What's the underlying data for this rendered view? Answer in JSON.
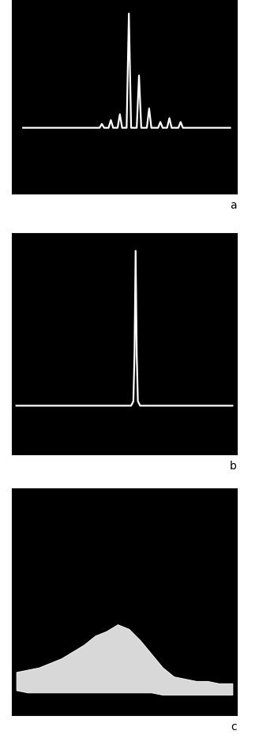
{
  "chart_data": [
    {
      "type": "line",
      "xlabel": "a",
      "color": "#ffffff",
      "tick_labels": false,
      "xlim": [
        0,
        100
      ],
      "ylim": [
        0,
        100
      ],
      "x": [
        5,
        39,
        40,
        41,
        43,
        44,
        45,
        47,
        48,
        49,
        51,
        52,
        53,
        55.5,
        56.5,
        57.5,
        60,
        61,
        62,
        65,
        66,
        67,
        69,
        70,
        71,
        74,
        75,
        76,
        97
      ],
      "values": [
        34,
        34,
        36,
        34,
        34,
        38,
        34,
        34,
        41,
        34,
        34,
        93,
        34,
        34,
        61,
        34,
        34,
        44,
        34,
        34,
        37,
        34,
        34,
        39,
        34,
        34,
        37,
        34,
        34
      ]
    },
    {
      "type": "line",
      "xlabel": "b",
      "color": "#ffffff",
      "tick_labels": false,
      "xlim": [
        0,
        100
      ],
      "ylim": [
        0,
        100
      ],
      "x": [
        2,
        53,
        54,
        54.5,
        55,
        55.5,
        56,
        57,
        98
      ],
      "values": [
        22,
        22,
        24,
        45,
        92,
        45,
        24,
        22,
        22
      ]
    },
    {
      "type": "area",
      "xlabel": "c",
      "color": "#ffffff",
      "tick_labels": false,
      "xlim": [
        0,
        100
      ],
      "ylim": [
        0,
        100
      ],
      "x": [
        2,
        7,
        12,
        17,
        22,
        27,
        32,
        37,
        42,
        47,
        52,
        57,
        62,
        67,
        72,
        77,
        82,
        87,
        92,
        98
      ],
      "values": [
        19,
        20,
        21,
        23,
        25,
        28,
        31,
        35,
        37,
        40,
        38,
        33,
        27,
        21,
        17,
        16,
        15,
        15,
        14,
        14
      ],
      "lower": [
        11,
        10,
        10,
        10,
        10,
        10,
        10,
        10,
        10,
        10,
        10,
        10,
        10,
        9,
        9,
        9,
        9,
        9,
        9,
        9
      ]
    }
  ]
}
